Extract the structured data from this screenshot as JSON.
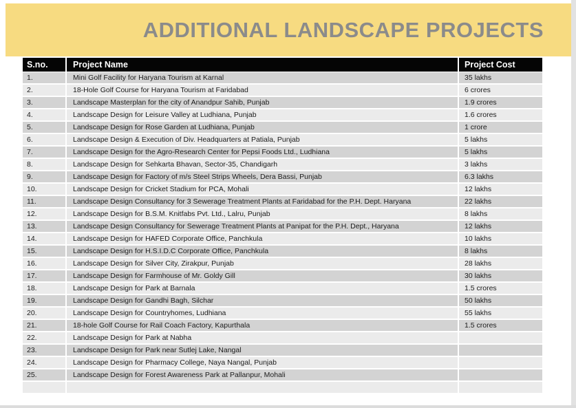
{
  "header": {
    "title": "ADDITIONAL LANDSCAPE PROJECTS"
  },
  "colors": {
    "band_yellow": "#F7DB81",
    "title_gray": "#8B8B8B",
    "header_bg": "#050505",
    "header_text": "#FFFFFF",
    "row_dark": "#D3D3D3",
    "row_light": "#EBEBEB",
    "cell_text": "#1B1B1B",
    "edge_gray": "#E2E2E2"
  },
  "table": {
    "columns": [
      "S.no.",
      "Project Name",
      "Project Cost"
    ],
    "rows": [
      {
        "sno": "1.",
        "name": "Mini Golf Facility for Haryana Tourism at Karnal",
        "cost": "35 lakhs"
      },
      {
        "sno": "2.",
        "name": "18-Hole Golf Course for Haryana Tourism at Faridabad",
        "cost": "6 crores"
      },
      {
        "sno": "3.",
        "name": "Landscape Masterplan for the city of Anandpur Sahib, Punjab",
        "cost": "1.9 crores"
      },
      {
        "sno": "4.",
        "name": "Landscape Design for Leisure Valley at Ludhiana, Punjab",
        "cost": "1.6 crores"
      },
      {
        "sno": "5.",
        "name": "Landscape Design for Rose Garden at Ludhiana, Punjab",
        "cost": "1 crore"
      },
      {
        "sno": "6.",
        "name": "Landscape Design & Execution of Div. Headquarters at Patiala, Punjab",
        "cost": "5 lakhs"
      },
      {
        "sno": "7.",
        "name": "Landscape Design for the Agro-Research Center for Pepsi Foods Ltd., Ludhiana",
        "cost": "5 lakhs"
      },
      {
        "sno": "8.",
        "name": "Landscape Design for Sehkarta Bhavan, Sector-35, Chandigarh",
        "cost": "3 lakhs"
      },
      {
        "sno": "9.",
        "name": "Landscape Design for Factory of m/s Steel Strips Wheels, Dera Bassi, Punjab",
        "cost": "6.3 lakhs"
      },
      {
        "sno": "10.",
        "name": "Landscape Design for Cricket Stadium for PCA, Mohali",
        "cost": "12 lakhs"
      },
      {
        "sno": "11.",
        "name": "Landscape Design Consultancy for 3 Sewerage Treatment Plants at Faridabad for the P.H. Dept. Haryana",
        "cost": "22 lakhs"
      },
      {
        "sno": "12.",
        "name": "Landscape Design for B.S.M. Knitfabs Pvt. Ltd., Lalru, Punjab",
        "cost": "8 lakhs"
      },
      {
        "sno": "13.",
        "name": "Landscape Design Consultancy for Sewerage Treatment Plants at Panipat for the P.H. Dept., Haryana",
        "cost": "12 lakhs"
      },
      {
        "sno": "14.",
        "name": "Landscape Design for HAFED Corporate Office, Panchkula",
        "cost": "10 lakhs"
      },
      {
        "sno": "15.",
        "name": "Landscape Design for H.S.I.D.C Corporate Office, Panchkula",
        "cost": "8 lakhs"
      },
      {
        "sno": "16.",
        "name": "Landscape Design for Silver City, Zirakpur, Punjab",
        "cost": "28 lakhs"
      },
      {
        "sno": "17.",
        "name": "Landscape Design for Farmhouse of Mr. Goldy Gill",
        "cost": "30 lakhs"
      },
      {
        "sno": "18.",
        "name": "Landscape Design for Park at Barnala",
        "cost": "1.5 crores"
      },
      {
        "sno": "19.",
        "name": "Landscape Design for Gandhi Bagh, Silchar",
        "cost": "50 lakhs"
      },
      {
        "sno": "20.",
        "name": "Landscape Design for Countryhomes, Ludhiana",
        "cost": "55 lakhs"
      },
      {
        "sno": "21.",
        "name": "18-hole Golf Course for Rail Coach Factory, Kapurthala",
        "cost": "1.5 crores"
      },
      {
        "sno": "22.",
        "name": "Landscape Design for Park at Nabha",
        "cost": ""
      },
      {
        "sno": "23.",
        "name": "Landscape Design for Park near Sutlej Lake, Nangal",
        "cost": ""
      },
      {
        "sno": "24.",
        "name": "Landscape Design for Pharmacy College, Naya Nangal, Punjab",
        "cost": ""
      },
      {
        "sno": "25.",
        "name": "Landscape Design for Forest Awareness Park at Pallanpur, Mohali",
        "cost": ""
      },
      {
        "sno": "",
        "name": "",
        "cost": ""
      }
    ]
  }
}
